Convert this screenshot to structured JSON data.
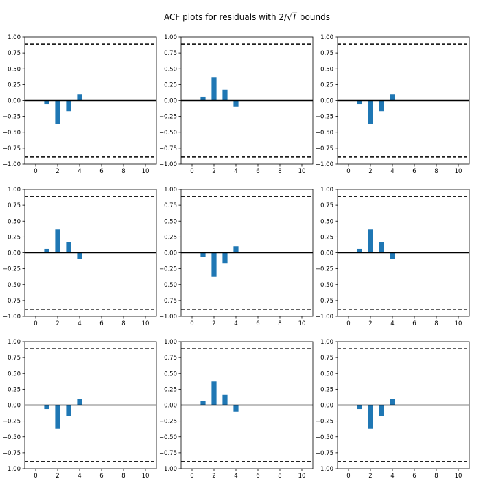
{
  "title": "ACF plots for residuals with 2/√T bounds",
  "title_parts": {
    "prefix": "ACF plots for residuals with 2/",
    "radical": "√",
    "var": "T",
    "suffix": " bounds"
  },
  "colors": {
    "bar": "#1f77b4",
    "line": "#000000",
    "background": "#ffffff"
  },
  "chart_data": [
    {
      "type": "bar",
      "x": [
        1,
        2,
        3,
        4
      ],
      "values": [
        -0.06,
        -0.37,
        -0.17,
        0.1
      ],
      "bound": 0.89,
      "xlim": [
        -1,
        11
      ],
      "ylim": [
        -1,
        1
      ],
      "xticks": [
        "0",
        "2",
        "4",
        "6",
        "8",
        "10"
      ],
      "yticks": [
        "1.00",
        "0.75",
        "0.50",
        "0.25",
        "0.00",
        "−0.25",
        "−0.50",
        "−0.75",
        "−1.00"
      ]
    },
    {
      "type": "bar",
      "x": [
        1,
        2,
        3,
        4
      ],
      "values": [
        0.06,
        0.37,
        0.17,
        -0.1
      ],
      "bound": 0.89,
      "xlim": [
        -1,
        11
      ],
      "ylim": [
        -1,
        1
      ],
      "xticks": [
        "0",
        "2",
        "4",
        "6",
        "8",
        "10"
      ],
      "yticks": [
        "1.00",
        "0.75",
        "0.50",
        "0.25",
        "0.00",
        "−0.25",
        "−0.50",
        "−0.75",
        "−1.00"
      ]
    },
    {
      "type": "bar",
      "x": [
        1,
        2,
        3,
        4
      ],
      "values": [
        -0.06,
        -0.37,
        -0.17,
        0.1
      ],
      "bound": 0.89,
      "xlim": [
        -1,
        11
      ],
      "ylim": [
        -1,
        1
      ],
      "xticks": [
        "0",
        "2",
        "4",
        "6",
        "8",
        "10"
      ],
      "yticks": [
        "1.00",
        "0.75",
        "0.50",
        "0.25",
        "0.00",
        "−0.25",
        "−0.50",
        "−0.75",
        "−1.00"
      ]
    },
    {
      "type": "bar",
      "x": [
        1,
        2,
        3,
        4
      ],
      "values": [
        0.06,
        0.37,
        0.17,
        -0.1
      ],
      "bound": 0.89,
      "xlim": [
        -1,
        11
      ],
      "ylim": [
        -1,
        1
      ],
      "xticks": [
        "0",
        "2",
        "4",
        "6",
        "8",
        "10"
      ],
      "yticks": [
        "1.00",
        "0.75",
        "0.50",
        "0.25",
        "0.00",
        "−0.25",
        "−0.50",
        "−0.75",
        "−1.00"
      ]
    },
    {
      "type": "bar",
      "x": [
        1,
        2,
        3,
        4
      ],
      "values": [
        -0.06,
        -0.37,
        -0.17,
        0.1
      ],
      "bound": 0.89,
      "xlim": [
        -1,
        11
      ],
      "ylim": [
        -1,
        1
      ],
      "xticks": [
        "0",
        "2",
        "4",
        "6",
        "8",
        "10"
      ],
      "yticks": [
        "1.00",
        "0.75",
        "0.50",
        "0.25",
        "0.00",
        "−0.25",
        "−0.50",
        "−0.75",
        "−1.00"
      ]
    },
    {
      "type": "bar",
      "x": [
        1,
        2,
        3,
        4
      ],
      "values": [
        0.06,
        0.37,
        0.17,
        -0.1
      ],
      "bound": 0.89,
      "xlim": [
        -1,
        11
      ],
      "ylim": [
        -1,
        1
      ],
      "xticks": [
        "0",
        "2",
        "4",
        "6",
        "8",
        "10"
      ],
      "yticks": [
        "1.00",
        "0.75",
        "0.50",
        "0.25",
        "0.00",
        "−0.25",
        "−0.50",
        "−0.75",
        "−1.00"
      ]
    },
    {
      "type": "bar",
      "x": [
        1,
        2,
        3,
        4
      ],
      "values": [
        -0.06,
        -0.37,
        -0.17,
        0.1
      ],
      "bound": 0.89,
      "xlim": [
        -1,
        11
      ],
      "ylim": [
        -1,
        1
      ],
      "xticks": [
        "0",
        "2",
        "4",
        "6",
        "8",
        "10"
      ],
      "yticks": [
        "1.00",
        "0.75",
        "0.50",
        "0.25",
        "0.00",
        "−0.25",
        "−0.50",
        "−0.75",
        "−1.00"
      ]
    },
    {
      "type": "bar",
      "x": [
        1,
        2,
        3,
        4
      ],
      "values": [
        0.06,
        0.37,
        0.17,
        -0.1
      ],
      "bound": 0.89,
      "xlim": [
        -1,
        11
      ],
      "ylim": [
        -1,
        1
      ],
      "xticks": [
        "0",
        "2",
        "4",
        "6",
        "8",
        "10"
      ],
      "yticks": [
        "1.00",
        "0.75",
        "0.50",
        "0.25",
        "0.00",
        "−0.25",
        "−0.50",
        "−0.75",
        "−1.00"
      ]
    },
    {
      "type": "bar",
      "x": [
        1,
        2,
        3,
        4
      ],
      "values": [
        -0.06,
        -0.37,
        -0.17,
        0.1
      ],
      "bound": 0.89,
      "xlim": [
        -1,
        11
      ],
      "ylim": [
        -1,
        1
      ],
      "xticks": [
        "0",
        "2",
        "4",
        "6",
        "8",
        "10"
      ],
      "yticks": [
        "1.00",
        "0.75",
        "0.50",
        "0.25",
        "0.00",
        "−0.25",
        "−0.50",
        "−0.75",
        "−1.00"
      ]
    }
  ]
}
